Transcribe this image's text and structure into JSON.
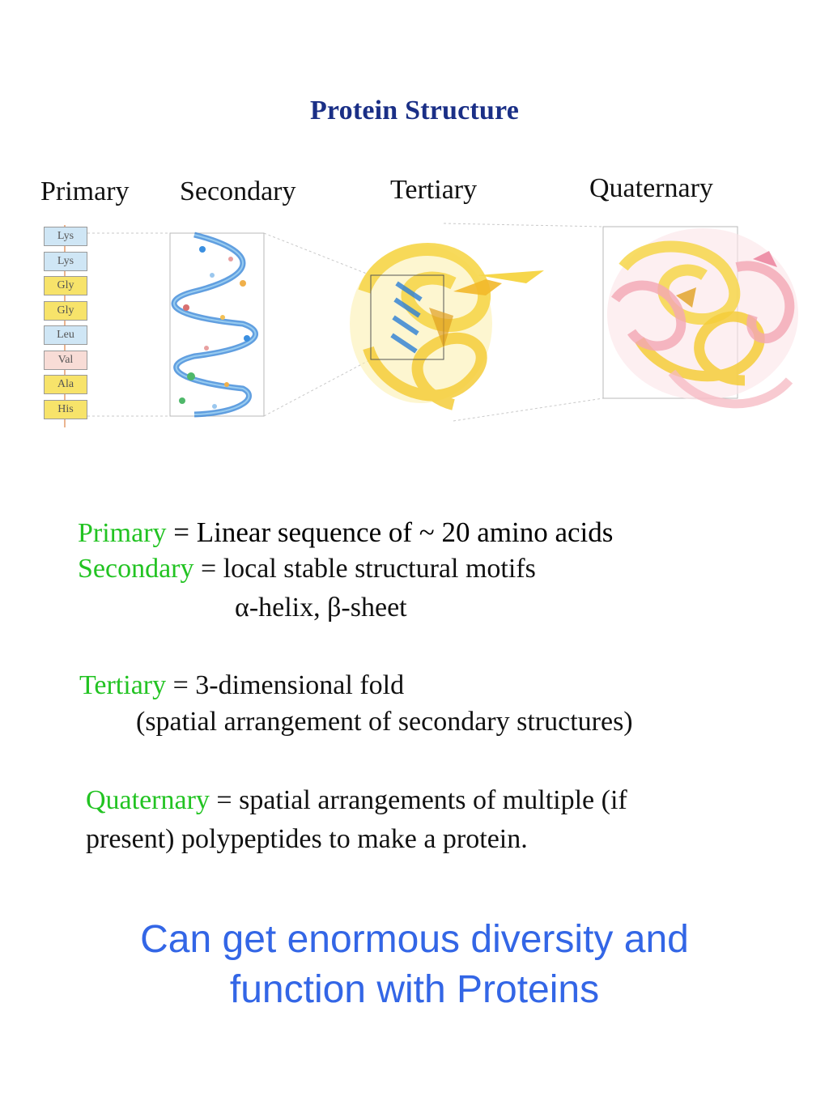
{
  "figure": {
    "title": "Protein Structure",
    "levels": {
      "primary": "Primary",
      "secondary": "Secondary",
      "tertiary": "Tertiary",
      "quaternary": "Quaternary"
    },
    "amino_acids": [
      {
        "label": "Lys",
        "color": "#cfe6f5"
      },
      {
        "label": "Lys",
        "color": "#cfe6f5"
      },
      {
        "label": "Gly",
        "color": "#f7e36a"
      },
      {
        "label": "Gly",
        "color": "#f7e36a"
      },
      {
        "label": "Leu",
        "color": "#cfe6f5"
      },
      {
        "label": "Val",
        "color": "#f8dcd6"
      },
      {
        "label": "Ala",
        "color": "#f7e36a"
      },
      {
        "label": "His",
        "color": "#f7e36a"
      }
    ]
  },
  "definitions": {
    "primary_term": "Primary",
    "primary_desc": " = Linear sequence of ~ 20 amino acids",
    "secondary_term": "Secondary",
    "secondary_desc": " = local stable structural motifs",
    "secondary_examples": "α-helix, β-sheet",
    "tertiary_term": "Tertiary",
    "tertiary_desc": " = 3-dimensional fold",
    "tertiary_detail": "(spatial arrangement of secondary structures)",
    "quaternary_term": "Quaternary",
    "quaternary_desc": " = spatial arrangements of multiple (if",
    "quaternary_cont": "present) polypeptides to make a protein."
  },
  "summary": {
    "line1": "Can get enormous diversity and",
    "line2": "function with Proteins"
  },
  "colors": {
    "title": "#1a2f86",
    "term_green": "#22c322",
    "summary_blue": "#3366e6",
    "ribbon_yellow": "#f6d64a",
    "ribbon_pink": "#f2a6b4",
    "helix_blue": "#2c7fd6"
  }
}
